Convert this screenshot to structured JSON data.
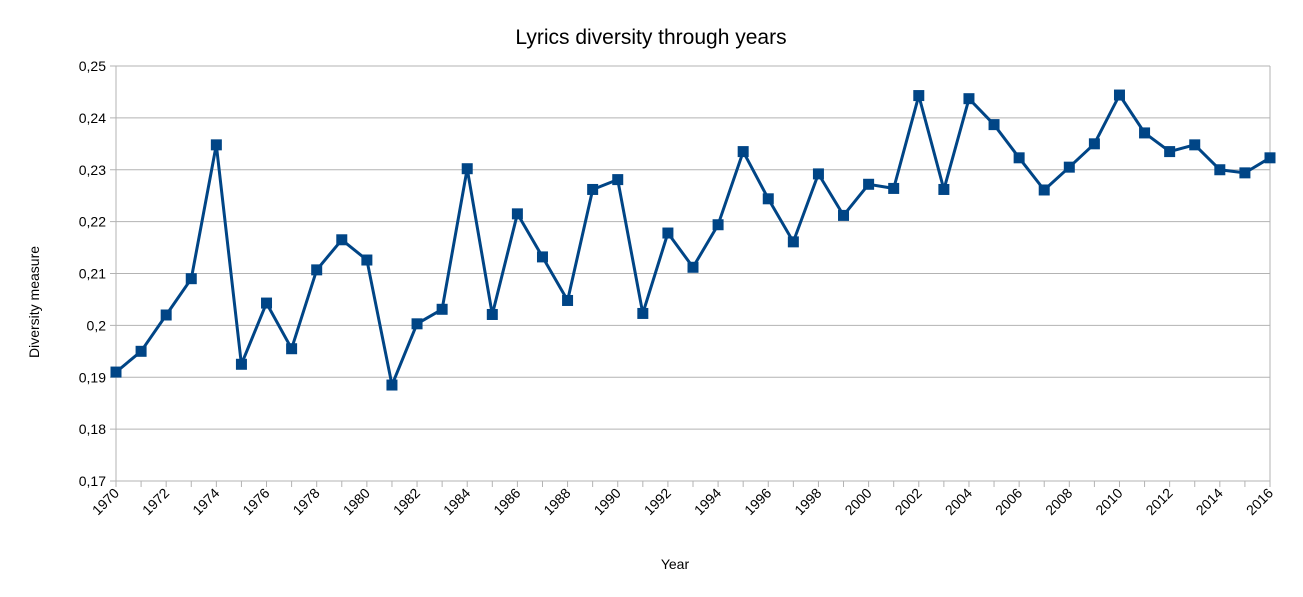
{
  "chart_data": {
    "type": "line",
    "title": "Lyrics diversity through years",
    "xlabel": "Year",
    "ylabel": "Diversity measure",
    "ylim": [
      0.17,
      0.25
    ],
    "y_ticks": [
      "0,17",
      "0,18",
      "0,19",
      "0,2",
      "0,21",
      "0,22",
      "0,23",
      "0,24",
      "0,25"
    ],
    "x_tick_labels": [
      "1970",
      "1972",
      "1974",
      "1976",
      "1978",
      "1980",
      "1982",
      "1984",
      "1986",
      "1988",
      "1990",
      "1992",
      "1994",
      "1996",
      "1998",
      "2000",
      "2002",
      "2004",
      "2006",
      "2008",
      "2010",
      "2012",
      "2014",
      "2016"
    ],
    "grid": true,
    "legend": "none",
    "series_color": "#004586",
    "x": [
      1970,
      1971,
      1972,
      1973,
      1974,
      1975,
      1976,
      1977,
      1978,
      1979,
      1980,
      1981,
      1982,
      1983,
      1984,
      1985,
      1986,
      1987,
      1988,
      1989,
      1990,
      1991,
      1992,
      1993,
      1994,
      1995,
      1996,
      1997,
      1998,
      1999,
      2000,
      2001,
      2002,
      2003,
      2004,
      2005,
      2006,
      2007,
      2008,
      2009,
      2010,
      2011,
      2012,
      2013,
      2014,
      2015,
      2016
    ],
    "series": [
      {
        "values": [
          0.191,
          0.195,
          0.202,
          0.209,
          0.2348,
          0.1925,
          0.2043,
          0.1955,
          0.2107,
          0.2165,
          0.2126,
          0.1885,
          0.2003,
          0.2031,
          0.2302,
          0.2021,
          0.2215,
          0.2132,
          0.2048,
          0.2262,
          0.2281,
          0.2023,
          0.2178,
          0.2112,
          0.2194,
          0.2335,
          0.2244,
          0.2161,
          0.2292,
          0.2212,
          0.2272,
          0.2264,
          0.2443,
          0.2262,
          0.2437,
          0.2387,
          0.2323,
          0.2261,
          0.2305,
          0.235,
          0.2444,
          0.2371,
          0.2335,
          0.2348,
          0.23,
          0.2294,
          0.2323
        ]
      }
    ]
  }
}
